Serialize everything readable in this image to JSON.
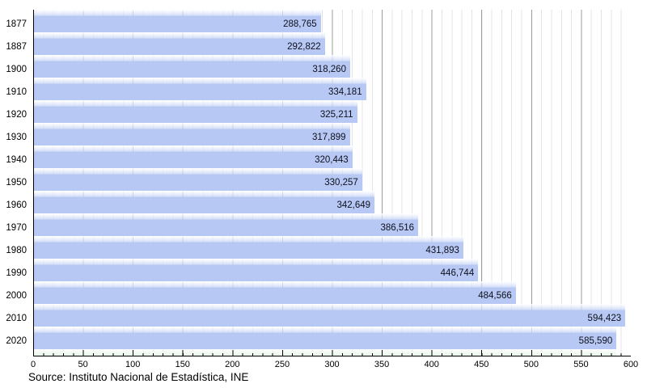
{
  "chart_data": {
    "type": "bar",
    "orientation": "horizontal",
    "title": "",
    "categories": [
      "1877",
      "1887",
      "1900",
      "1910",
      "1920",
      "1930",
      "1940",
      "1950",
      "1960",
      "1970",
      "1980",
      "1990",
      "2000",
      "2010",
      "2020"
    ],
    "values": [
      288765,
      292822,
      318260,
      334181,
      325211,
      317899,
      320443,
      330257,
      342649,
      386516,
      431893,
      446744,
      484566,
      594423,
      585590
    ],
    "value_labels": [
      "288,765",
      "292,822",
      "318,260",
      "334,181",
      "325,211",
      "317,899",
      "320,443",
      "330,257",
      "342,649",
      "386,516",
      "431,893",
      "446,744",
      "484,566",
      "594,423",
      "585,590"
    ],
    "xlabel": "",
    "ylabel": "",
    "xlim": [
      0,
      600
    ],
    "x_scale_divisor": 1000,
    "x_ticks": [
      0,
      50,
      100,
      150,
      200,
      250,
      300,
      350,
      400,
      450,
      500,
      550,
      600
    ],
    "x_tick_labels": [
      "0",
      "50",
      "100",
      "150",
      "200",
      "250",
      "300",
      "350",
      "400",
      "450",
      "500",
      "550",
      "600"
    ],
    "grid": "vertical, minor every 10, major every 50",
    "legend": "none",
    "source": "Source: Instituto Nacional de Estadística, INE",
    "colors": {
      "bar_fill": "#b6c8f3",
      "bar_gloss": "#ffffff",
      "value_text": "#10101c",
      "axis": "#000000",
      "grid_major": "#9c9c9c",
      "grid_minor": "#e4e4e8",
      "footer_strip": "#d6eed6",
      "background": "#ffffff"
    }
  }
}
